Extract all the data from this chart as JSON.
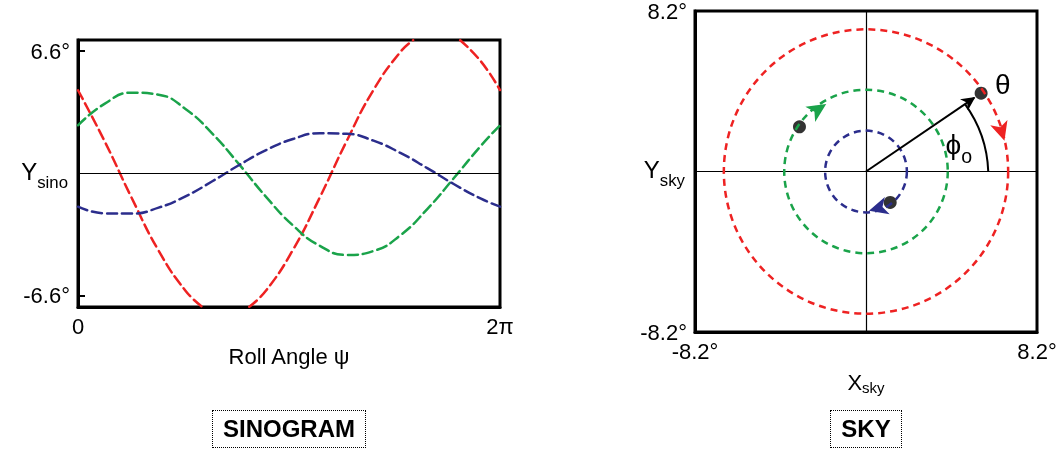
{
  "chart_data": [
    {
      "type": "line",
      "title": "SINOGRAM",
      "xlabel": "Roll Angle ψ",
      "ylabel": "Y$_{sino}$",
      "line_style": "dashed",
      "marker": "none",
      "xlim": [
        0,
        6.283
      ],
      "ylim": [
        -7.2,
        7.2
      ],
      "xticks": [
        0,
        {
          "value": 6.283,
          "label": "2π"
        }
      ],
      "yticks": [
        {
          "value": -6.6,
          "label": "-6.6°"
        },
        {
          "value": 6.6,
          "label": "6.6°"
        }
      ],
      "ref_lines": [
        {
          "axis": "y",
          "value": 0,
          "color": "#000000"
        }
      ],
      "series": [
        {
          "color": "#ee2222",
          "x": [
            0,
            0.4,
            0.8,
            1.2,
            1.6,
            1.85,
            2.2,
            2.55,
            2.8,
            3.2,
            3.6,
            4.0,
            4.4,
            4.8,
            4.99,
            5.34,
            5.69,
            6.0,
            6.283
          ],
          "values": [
            4.49,
            1.71,
            -1.32,
            -4.16,
            -6.32,
            -7.19,
            null,
            -7.19,
            -6.31,
            -4.12,
            -1.29,
            1.75,
            4.51,
            6.56,
            7.19,
            null,
            7.19,
            6.04,
            4.5
          ]
        },
        {
          "color": "#1aa34a",
          "x": [
            0,
            0.4,
            0.8,
            1.2,
            1.6,
            2.0,
            2.4,
            2.8,
            3.2,
            3.6,
            4.0,
            4.4,
            4.8,
            5.2,
            5.6,
            6.0,
            6.283
          ],
          "values": [
            2.6,
            3.77,
            4.36,
            4.25,
            3.48,
            2.15,
            0.49,
            -1.26,
            -2.8,
            -3.9,
            -4.39,
            -4.18,
            -3.33,
            -1.92,
            -0.23,
            1.5,
            2.6
          ]
        },
        {
          "color": "#2b2d8c",
          "x": [
            0,
            0.4,
            0.8,
            1.2,
            1.6,
            2.0,
            2.4,
            2.8,
            3.2,
            3.6,
            4.0,
            4.4,
            4.8,
            5.2,
            5.6,
            6.0,
            6.283
          ],
          "values": [
            -1.79,
            -2.15,
            -2.16,
            -1.84,
            -1.23,
            -0.42,
            0.46,
            1.26,
            1.86,
            2.17,
            2.14,
            1.77,
            1.11,
            0.29,
            -0.58,
            -1.36,
            -1.79
          ]
        }
      ]
    },
    {
      "type": "scatter",
      "title": "SKY",
      "xlabel": "X$_{sky}$",
      "ylabel": "Y$_{sky}$",
      "line_style": "dashed",
      "marker": "circle",
      "xlim": [
        -8.2,
        8.2
      ],
      "ylim": [
        -8.2,
        8.2
      ],
      "xticks": [
        {
          "value": -8.2,
          "label": "-8.2°"
        },
        {
          "value": 8.2,
          "label": "8.2°"
        }
      ],
      "yticks": [
        {
          "value": -8.2,
          "label": "-8.2°"
        },
        {
          "value": 8.2,
          "label": "8.2°"
        }
      ],
      "ref_lines": [
        {
          "axis": "x",
          "value": 0,
          "color": "#000000"
        },
        {
          "axis": "y",
          "value": 0,
          "color": "#000000"
        }
      ],
      "annotations": [
        {
          "text": "θ",
          "x": 5.52,
          "y": 4.0
        },
        "ϕ$_{o}$"
      ],
      "series": [
        {
          "color": "#000000",
          "x": [
            5.52,
            -3.19,
            1.16
          ],
          "values": [
            4.0,
            2.28,
            -1.58
          ]
        }
      ]
    }
  ]
}
